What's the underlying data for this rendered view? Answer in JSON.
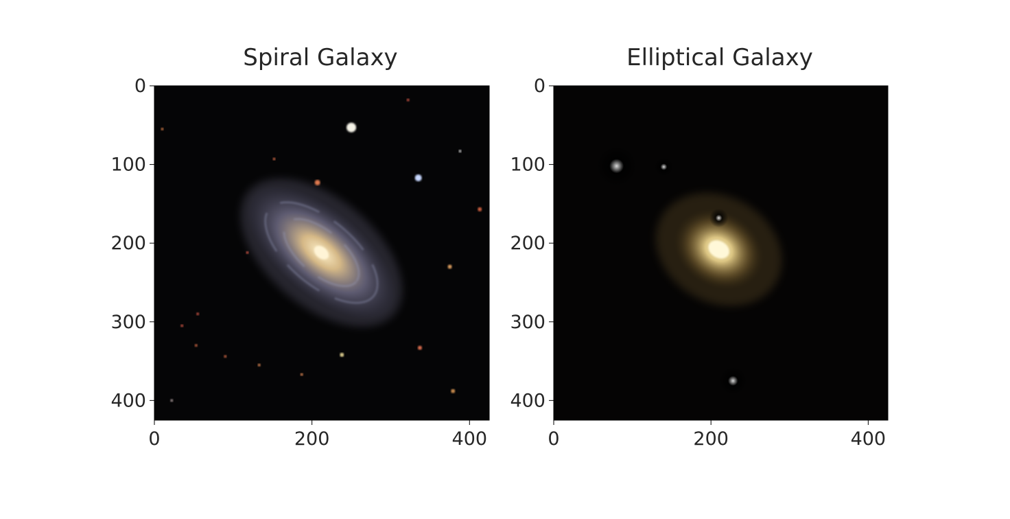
{
  "chart_data": [
    {
      "type": "image",
      "title": "Spiral Galaxy",
      "image": "spiral-galaxy-photo",
      "xlim": [
        0,
        425
      ],
      "ylim": [
        425,
        0
      ],
      "xticks": [
        0,
        200,
        400
      ],
      "yticks": [
        0,
        100,
        200,
        300,
        400
      ],
      "xticklabels": [
        "0",
        "200",
        "400"
      ],
      "yticklabels": [
        "0",
        "100",
        "200",
        "300",
        "400"
      ],
      "galaxy": {
        "center": [
          212,
          212
        ],
        "semi_axes": [
          115,
          55
        ],
        "angle_deg": 40,
        "core_color": "#e8c890",
        "arm_color": "#8a86a6"
      },
      "stars": [
        {
          "x": 250,
          "y": 53,
          "r": 7,
          "color": "#f4f2e6"
        },
        {
          "x": 335,
          "y": 117,
          "r": 5,
          "color": "#c8d8ff"
        },
        {
          "x": 207,
          "y": 123,
          "r": 4,
          "color": "#e07a50"
        },
        {
          "x": 413,
          "y": 157,
          "r": 3,
          "color": "#d06040"
        },
        {
          "x": 375,
          "y": 230,
          "r": 3,
          "color": "#e0a060"
        },
        {
          "x": 238,
          "y": 342,
          "r": 3,
          "color": "#e0d090"
        },
        {
          "x": 337,
          "y": 333,
          "r": 3,
          "color": "#e07050"
        },
        {
          "x": 379,
          "y": 388,
          "r": 3,
          "color": "#d09050"
        },
        {
          "x": 118,
          "y": 212,
          "r": 2,
          "color": "#c05040"
        },
        {
          "x": 55,
          "y": 290,
          "r": 2,
          "color": "#c05040"
        },
        {
          "x": 35,
          "y": 305,
          "r": 2,
          "color": "#c05040"
        },
        {
          "x": 10,
          "y": 55,
          "r": 2,
          "color": "#c07040"
        },
        {
          "x": 53,
          "y": 330,
          "r": 2,
          "color": "#c06040"
        },
        {
          "x": 90,
          "y": 344,
          "r": 2,
          "color": "#c06040"
        },
        {
          "x": 133,
          "y": 355,
          "r": 2,
          "color": "#d08050"
        },
        {
          "x": 187,
          "y": 367,
          "r": 2,
          "color": "#d08050"
        },
        {
          "x": 388,
          "y": 83,
          "r": 2,
          "color": "#c0c0c0"
        },
        {
          "x": 22,
          "y": 400,
          "r": 2,
          "color": "#a09090"
        },
        {
          "x": 322,
          "y": 18,
          "r": 2,
          "color": "#c05040"
        },
        {
          "x": 152,
          "y": 93,
          "r": 2,
          "color": "#c06040"
        }
      ]
    },
    {
      "type": "image",
      "title": "Elliptical Galaxy",
      "image": "elliptical-galaxy-photo",
      "xlim": [
        0,
        425
      ],
      "ylim": [
        425,
        0
      ],
      "xticks": [
        0,
        200,
        400
      ],
      "yticks": [
        0,
        100,
        200,
        300,
        400
      ],
      "xticklabels": [
        "0",
        "200",
        "400"
      ],
      "yticklabels": [
        "0",
        "100",
        "200",
        "300",
        "400"
      ],
      "galaxy": {
        "center": [
          210,
          208
        ],
        "semi_axes": [
          60,
          48
        ],
        "angle_deg": 30,
        "core_color": "#f4e2a0",
        "halo_color": "#a08040"
      },
      "blobs": [
        {
          "x": 80,
          "y": 102,
          "r": 26,
          "color": "#e6cc8a"
        },
        {
          "x": 228,
          "y": 375,
          "r": 18,
          "color": "#f0c080"
        },
        {
          "x": 210,
          "y": 168,
          "r": 12,
          "color": "#d8c888"
        },
        {
          "x": 140,
          "y": 103,
          "r": 12,
          "color": "#403830"
        }
      ]
    }
  ]
}
